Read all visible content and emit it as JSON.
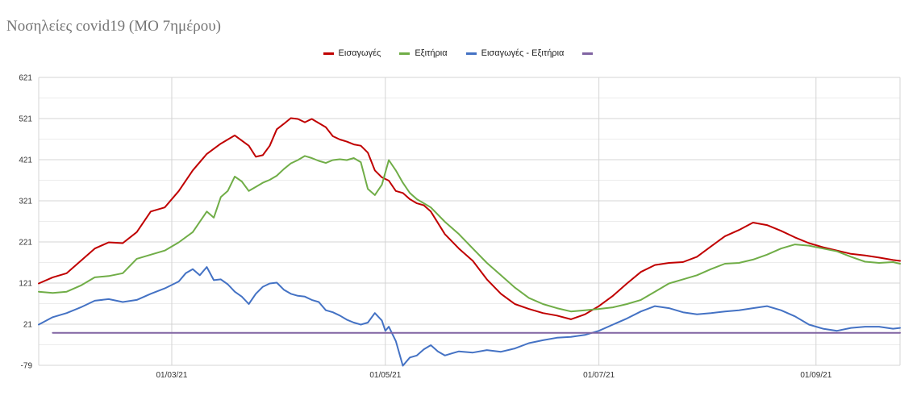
{
  "chart_data": {
    "type": "line",
    "title": "Νοσηλείες covid19 (ΜΟ 7ημέρου)",
    "xlabel": "",
    "ylabel": "",
    "ylim": [
      -79,
      621
    ],
    "y_ticks": [
      "621",
      "521",
      "421",
      "321",
      "221",
      "121",
      "21",
      "-79"
    ],
    "x_ticks": [
      {
        "label": "01/03/21",
        "day": 38
      },
      {
        "label": "01/05/21",
        "day": 99
      },
      {
        "label": "01/07/21",
        "day": 160
      },
      {
        "label": "01/09/21",
        "day": 222
      }
    ],
    "x_range_days": [
      0,
      246
    ],
    "grid": true,
    "legend_position": "top",
    "series": [
      {
        "name": "Εισαγωγές",
        "color": "#c00000",
        "days": [
          0,
          4,
          8,
          12,
          16,
          20,
          24,
          28,
          32,
          36,
          40,
          44,
          48,
          52,
          56,
          60,
          62,
          64,
          66,
          68,
          70,
          72,
          74,
          76,
          78,
          80,
          82,
          84,
          86,
          88,
          90,
          92,
          94,
          96,
          98,
          100,
          102,
          104,
          106,
          108,
          110,
          112,
          116,
          120,
          124,
          128,
          132,
          136,
          140,
          144,
          148,
          152,
          156,
          160,
          164,
          168,
          172,
          176,
          180,
          184,
          188,
          192,
          196,
          200,
          204,
          208,
          212,
          216,
          220,
          224,
          228,
          232,
          236,
          240,
          244,
          246
        ],
        "values": [
          120,
          135,
          145,
          175,
          205,
          220,
          218,
          245,
          295,
          305,
          345,
          395,
          435,
          460,
          480,
          455,
          428,
          432,
          455,
          495,
          508,
          522,
          520,
          512,
          520,
          510,
          500,
          478,
          470,
          465,
          458,
          455,
          438,
          395,
          378,
          370,
          345,
          340,
          325,
          315,
          310,
          295,
          240,
          205,
          175,
          130,
          95,
          70,
          58,
          48,
          42,
          33,
          45,
          65,
          90,
          120,
          148,
          165,
          170,
          172,
          185,
          210,
          235,
          250,
          268,
          262,
          248,
          232,
          218,
          208,
          200,
          192,
          188,
          183,
          177,
          175
        ]
      },
      {
        "name": "Εξιτήρια",
        "color": "#70ad47",
        "days": [
          0,
          4,
          8,
          12,
          16,
          20,
          24,
          28,
          32,
          36,
          40,
          44,
          48,
          50,
          52,
          54,
          56,
          58,
          60,
          62,
          64,
          66,
          68,
          70,
          72,
          74,
          76,
          78,
          80,
          82,
          84,
          86,
          88,
          90,
          92,
          94,
          96,
          98,
          100,
          102,
          104,
          106,
          108,
          110,
          112,
          116,
          120,
          124,
          128,
          132,
          136,
          140,
          144,
          148,
          152,
          156,
          160,
          164,
          168,
          172,
          176,
          180,
          184,
          188,
          192,
          196,
          200,
          204,
          208,
          212,
          216,
          220,
          224,
          228,
          232,
          236,
          240,
          244,
          246
        ],
        "values": [
          100,
          97,
          100,
          115,
          135,
          138,
          145,
          180,
          190,
          200,
          220,
          245,
          295,
          280,
          330,
          345,
          380,
          368,
          345,
          355,
          365,
          372,
          382,
          398,
          412,
          420,
          430,
          425,
          418,
          413,
          420,
          422,
          420,
          425,
          415,
          350,
          335,
          360,
          420,
          395,
          365,
          340,
          325,
          315,
          305,
          270,
          240,
          205,
          170,
          140,
          110,
          85,
          70,
          60,
          52,
          55,
          58,
          62,
          70,
          80,
          100,
          120,
          130,
          140,
          155,
          168,
          170,
          178,
          190,
          205,
          215,
          212,
          205,
          198,
          185,
          173,
          170,
          172,
          168
        ]
      },
      {
        "name": "Εισαγωγές - Εξιτήρια",
        "color": "#4472c4",
        "days": [
          0,
          4,
          8,
          12,
          16,
          20,
          24,
          28,
          32,
          36,
          40,
          42,
          44,
          46,
          48,
          50,
          52,
          54,
          56,
          58,
          60,
          62,
          64,
          66,
          68,
          70,
          72,
          74,
          76,
          78,
          80,
          82,
          84,
          86,
          88,
          90,
          92,
          94,
          96,
          98,
          99,
          100,
          102,
          104,
          106,
          108,
          110,
          112,
          114,
          116,
          118,
          120,
          124,
          128,
          132,
          136,
          140,
          144,
          148,
          152,
          156,
          160,
          164,
          168,
          172,
          176,
          180,
          184,
          188,
          192,
          196,
          200,
          204,
          208,
          212,
          216,
          220,
          224,
          228,
          232,
          236,
          240,
          244,
          246
        ],
        "values": [
          20,
          38,
          48,
          62,
          78,
          82,
          75,
          80,
          95,
          108,
          125,
          145,
          155,
          140,
          160,
          128,
          130,
          118,
          100,
          88,
          70,
          95,
          112,
          120,
          122,
          105,
          95,
          90,
          88,
          80,
          75,
          55,
          50,
          42,
          32,
          25,
          20,
          25,
          48,
          30,
          5,
          15,
          -20,
          -80,
          -60,
          -55,
          -40,
          -30,
          -45,
          -55,
          -50,
          -45,
          -48,
          -42,
          -46,
          -38,
          -25,
          -18,
          -12,
          -10,
          -5,
          5,
          20,
          35,
          52,
          65,
          60,
          50,
          45,
          48,
          52,
          55,
          60,
          65,
          55,
          40,
          20,
          10,
          5,
          12,
          15,
          15,
          10,
          12
        ]
      },
      {
        "name": "",
        "color": "#8064a2",
        "days": [
          4,
          246
        ],
        "values": [
          0,
          0
        ]
      }
    ]
  }
}
